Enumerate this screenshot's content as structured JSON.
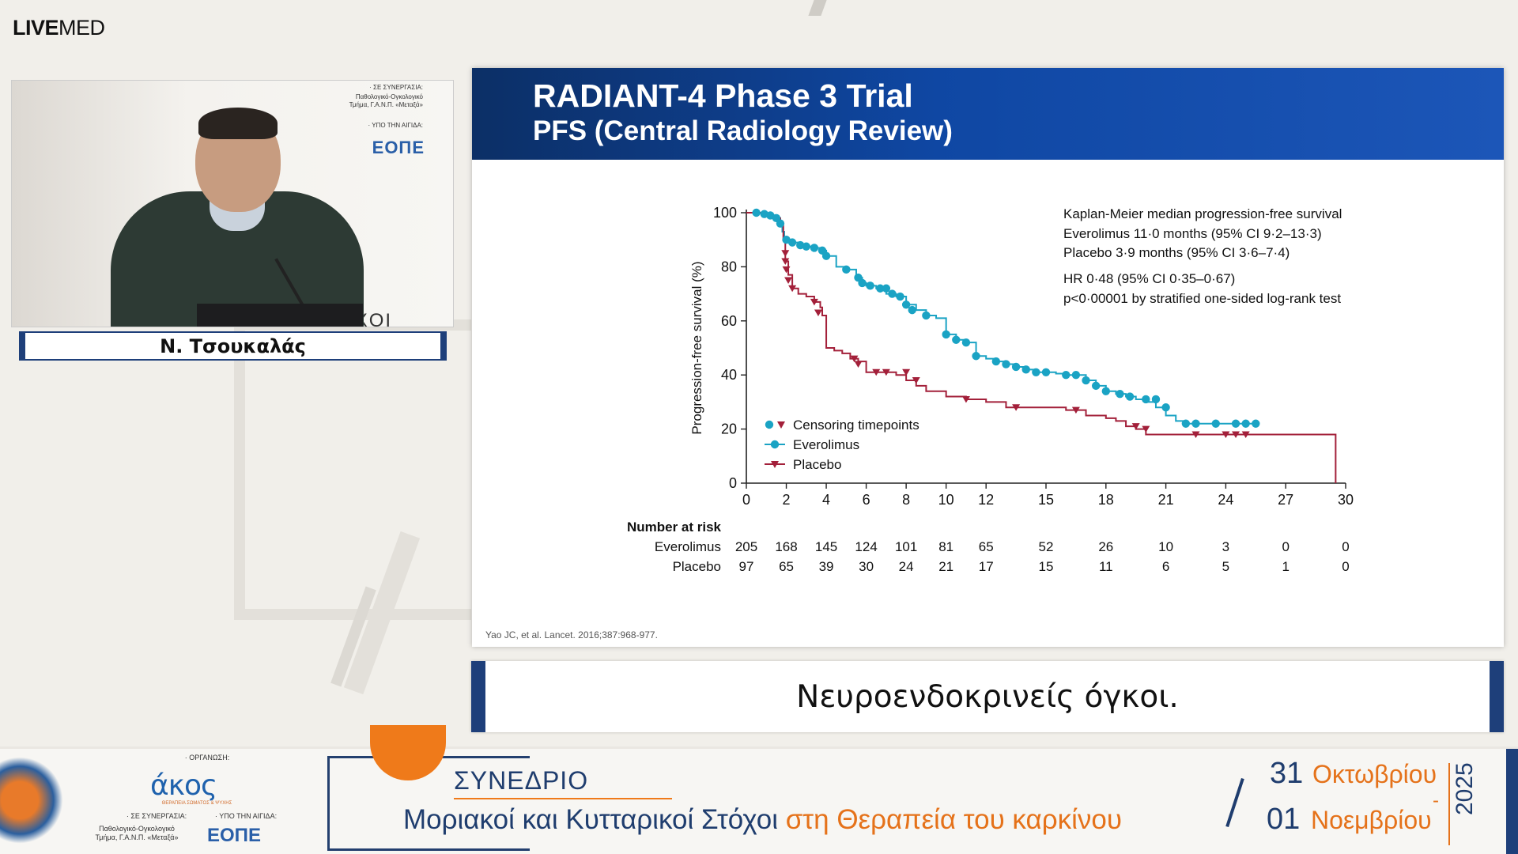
{
  "app": {
    "logo_bold": "LIVE",
    "logo_light": "MED"
  },
  "speaker": {
    "name": "Ν. Τσουκαλάς"
  },
  "video_banner": {
    "collab_label": "· ΣΕ ΣΥΝΕΡΓΑΣΙΑ:",
    "collab_dept_1": "Παθολογικό-Ογκολογικό",
    "collab_dept_2": "Τμήμα, Γ.Α.Ν.Π. «Μεταξά»",
    "auspices_label": "· ΥΠΟ ΤΗΝ ΑΙΓΙΔΑ:",
    "logo": "ΕΟΠΕ",
    "bg_word": "ΣΤΟΧΟΙ"
  },
  "slide": {
    "title": "RADIANT-4 Phase 3 Trial",
    "subtitle": "PFS (Central Radiology Review)",
    "citation": "Yao JC, et al. Lancet. 2016;387:968-977.",
    "stats": {
      "line1": "Kaplan-Meier median progression-free survival",
      "line2": "Everolimus 11·0 months (95% CI 9·2–13·3)",
      "line3": "Placebo 3·9 months (95% CI 3·6–7·4)",
      "line4": "HR 0·48 (95% CI 0·35–0·67)",
      "line5": "p<0·00001 by stratified one-sided log-rank test"
    }
  },
  "chart_data": {
    "type": "line",
    "ylabel": "Progression-free survival (%)",
    "xlim": [
      0,
      30
    ],
    "ylim": [
      0,
      100
    ],
    "x_ticks": [
      0,
      2,
      4,
      6,
      8,
      10,
      12,
      15,
      18,
      21,
      24,
      27,
      30
    ],
    "y_ticks": [
      0,
      20,
      40,
      60,
      80,
      100
    ],
    "legend": [
      "Censoring timepoints",
      "Everolimus",
      "Placebo"
    ],
    "legend_position": "bottom-left",
    "colors": {
      "everolimus": "#1aa3c4",
      "placebo": "#a3203a",
      "axis": "#222222"
    },
    "series": [
      {
        "name": "Everolimus",
        "x": [
          0,
          0.5,
          0.9,
          1.2,
          1.5,
          1.7,
          1.8,
          1.9,
          2.0,
          2.3,
          2.7,
          3.0,
          3.4,
          3.8,
          4.0,
          4.5,
          5.0,
          5.5,
          5.8,
          6.0,
          6.5,
          7.0,
          7.5,
          8.0,
          8.5,
          9.0,
          9.5,
          10.0,
          10.5,
          11.0,
          11.5,
          12.0,
          12.5,
          13.0,
          13.5,
          14.0,
          14.5,
          15.0,
          15.5,
          16.0,
          16.5,
          17.0,
          17.5,
          18.0,
          18.5,
          19.0,
          19.5,
          20.0,
          20.5,
          21.0,
          21.5,
          22.0,
          23.0,
          24.0,
          25.0,
          25.5
        ],
        "y": [
          100,
          100,
          99.5,
          99,
          98,
          96,
          93,
          91,
          90,
          89,
          88,
          87.5,
          87,
          86,
          84,
          80,
          79,
          76,
          74,
          73,
          72,
          70,
          69,
          66,
          64,
          62,
          61,
          55,
          53,
          52,
          47,
          46,
          45,
          44,
          43,
          42,
          41,
          41,
          40.5,
          40,
          40,
          38,
          36,
          34,
          33,
          32,
          31,
          30,
          28,
          25,
          23,
          22,
          22,
          22,
          22,
          22
        ]
      },
      {
        "name": "Placebo",
        "x": [
          0,
          0.9,
          1.3,
          1.7,
          1.85,
          1.95,
          2.1,
          2.3,
          2.6,
          3.0,
          3.4,
          3.7,
          3.8,
          4.0,
          4.4,
          4.8,
          5.2,
          5.6,
          6.0,
          6.5,
          7.0,
          7.5,
          8.0,
          8.5,
          9.0,
          10.0,
          11.0,
          12.0,
          13.0,
          14.0,
          15.0,
          16.0,
          16.5,
          17.0,
          18.0,
          18.5,
          19.0,
          19.5,
          20.0,
          21.0,
          22.0,
          23.0,
          24.0,
          25.0,
          26.0,
          27.0,
          29.5,
          29.5
        ],
        "y": [
          100,
          99,
          98,
          96,
          90,
          82,
          77,
          72,
          70,
          69,
          67,
          65,
          62,
          50,
          49,
          48,
          46,
          45,
          41,
          41,
          41,
          40,
          38,
          36,
          34,
          32,
          31,
          30,
          28,
          28,
          28,
          27,
          27,
          25,
          24,
          23,
          21,
          20,
          18,
          18,
          18,
          18,
          18,
          18,
          18,
          18,
          18,
          0
        ]
      }
    ],
    "censor_points": {
      "everolimus": [
        [
          0.5,
          100
        ],
        [
          0.9,
          99.5
        ],
        [
          1.2,
          99
        ],
        [
          1.5,
          98
        ],
        [
          1.7,
          96
        ],
        [
          2.0,
          90
        ],
        [
          2.3,
          89
        ],
        [
          2.7,
          88
        ],
        [
          3.0,
          87.5
        ],
        [
          3.4,
          87
        ],
        [
          3.8,
          86
        ],
        [
          4.0,
          84
        ],
        [
          5.0,
          79
        ],
        [
          5.6,
          76
        ],
        [
          5.8,
          74
        ],
        [
          6.2,
          73
        ],
        [
          6.7,
          72
        ],
        [
          7.0,
          72
        ],
        [
          7.3,
          70
        ],
        [
          7.7,
          69
        ],
        [
          8.0,
          66
        ],
        [
          8.3,
          64
        ],
        [
          9.0,
          62
        ],
        [
          10.0,
          55
        ],
        [
          10.5,
          53
        ],
        [
          11.0,
          52
        ],
        [
          11.5,
          47
        ],
        [
          12.5,
          45
        ],
        [
          13.0,
          44
        ],
        [
          13.5,
          43
        ],
        [
          14.0,
          42
        ],
        [
          14.5,
          41
        ],
        [
          15.0,
          41
        ],
        [
          16.0,
          40
        ],
        [
          16.5,
          40
        ],
        [
          17.0,
          38
        ],
        [
          17.5,
          36
        ],
        [
          18.0,
          34
        ],
        [
          18.7,
          33
        ],
        [
          19.2,
          32
        ],
        [
          20.0,
          31
        ],
        [
          20.5,
          31
        ],
        [
          21.0,
          28
        ],
        [
          22.0,
          22
        ],
        [
          22.5,
          22
        ],
        [
          23.5,
          22
        ],
        [
          24.5,
          22
        ],
        [
          25.0,
          22
        ],
        [
          25.5,
          22
        ]
      ],
      "placebo": [
        [
          1.95,
          85
        ],
        [
          1.95,
          82
        ],
        [
          2.0,
          79
        ],
        [
          2.1,
          75
        ],
        [
          2.3,
          72
        ],
        [
          3.4,
          67
        ],
        [
          3.6,
          63
        ],
        [
          5.4,
          46
        ],
        [
          5.6,
          44
        ],
        [
          6.5,
          41
        ],
        [
          7.0,
          41
        ],
        [
          8.0,
          41
        ],
        [
          8.5,
          38
        ],
        [
          11.0,
          31
        ],
        [
          13.5,
          28
        ],
        [
          16.5,
          27
        ],
        [
          19.5,
          21
        ],
        [
          20.0,
          20
        ],
        [
          22.5,
          18
        ],
        [
          24.0,
          18
        ],
        [
          24.5,
          18
        ],
        [
          25.0,
          18
        ]
      ]
    },
    "number_at_risk": {
      "label": "Number at risk",
      "times": [
        "0",
        "2",
        "4",
        "6",
        "8",
        "10",
        "12",
        "15",
        "18",
        "21",
        "24",
        "27",
        "30"
      ],
      "rows": [
        {
          "label": "Everolimus",
          "values": [
            "205",
            "168",
            "145",
            "124",
            "101",
            "81",
            "65",
            "52",
            "26",
            "10",
            "3",
            "0",
            "0"
          ]
        },
        {
          "label": "Placebo",
          "values": [
            "97",
            "65",
            "39",
            "30",
            "24",
            "21",
            "17",
            "15",
            "11",
            "6",
            "5",
            "1",
            "0"
          ]
        }
      ]
    }
  },
  "caption": {
    "text": "Νευροενδοκρινείς όγκοι."
  },
  "footer": {
    "org_label": "· ΟΡΓΑΝΩΣΗ:",
    "org_logo": "άκος",
    "org_sub": "ΘΕΡΑΠΕΙΑ ΣΩΜΑΤΟΣ & ΨΥΧΗΣ",
    "collab_label": "· ΣΕ ΣΥΝΕΡΓΑΣΙΑ:",
    "collab_dept_1": "Παθολογικό-Ογκολογικό",
    "collab_dept_2": "Τμήμα, Γ.Α.Ν.Π. «Μεταξά»",
    "auspices_label": "· ΥΠΟ ΤΗΝ ΑΙΓΙΔΑ:",
    "auspices_logo": "ΕΟΠΕ",
    "conference_label": "ΣΥΝΕΔΡΙΟ",
    "conference_title_main": "Μοριακοί και Κυτταρικοί Στόχοι ",
    "conference_title_accent": "στη Θεραπεία του καρκίνου",
    "date_start_day": "31",
    "date_start_month": "Οκτωβρίου",
    "date_separator": "-",
    "date_end_day": "01",
    "date_end_month": "Νοεμβρίου",
    "year": "2025"
  }
}
